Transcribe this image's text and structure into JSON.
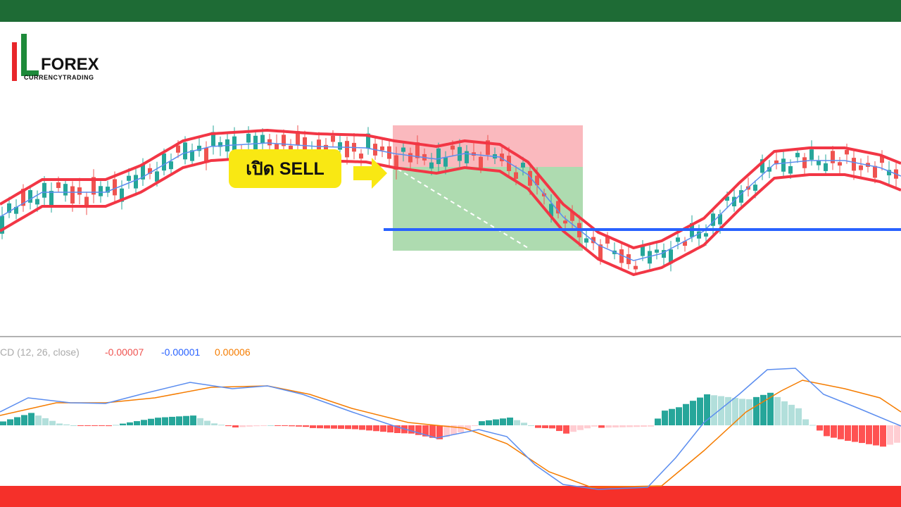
{
  "logo": {
    "brand": "FOREX",
    "tagline": "CURRENCYTRADING"
  },
  "annotation": "เปิด SELL",
  "macd_legend": {
    "name": "CD (12, 26, close)",
    "histogram": "-0.00007",
    "macd": "-0.00001",
    "signal": "0.00006"
  }
}
